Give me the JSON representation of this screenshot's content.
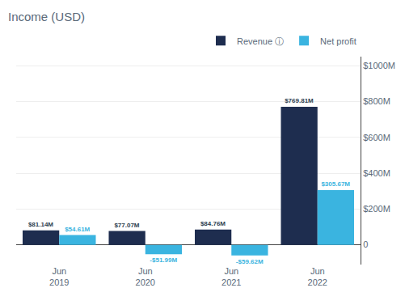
{
  "chart_data": {
    "type": "bar",
    "title": "Income (USD)",
    "categories": [
      "Jun\n2019",
      "Jun\n2020",
      "Jun\n2021",
      "Jun\n2022"
    ],
    "series": [
      {
        "name": "Revenue ⓘ",
        "color": "#1e2d4f",
        "values": [
          81.14,
          77.07,
          84.76,
          769.81
        ],
        "value_labels": [
          "$81.14M",
          "$77.07M",
          "$84.76M",
          "$769.81M"
        ]
      },
      {
        "name": "Net profit",
        "color": "#3ab4e0",
        "values": [
          54.61,
          -51.99,
          -59.62,
          305.67
        ],
        "value_labels": [
          "$54.61M",
          "-$51.99M",
          "-$59.62M",
          "$305.67M"
        ]
      }
    ],
    "ylim": [
      -110,
      1050
    ],
    "yticks": [
      0,
      {
        "value": 200,
        "label": "$200M"
      },
      {
        "value": 400,
        "label": "$400M"
      },
      {
        "value": 600,
        "label": "$600M"
      },
      {
        "value": 800,
        "label": "$800M"
      },
      {
        "value": 1000,
        "label": "$1000M"
      }
    ],
    "grid": true,
    "legend": "top",
    "data_labels": true
  }
}
